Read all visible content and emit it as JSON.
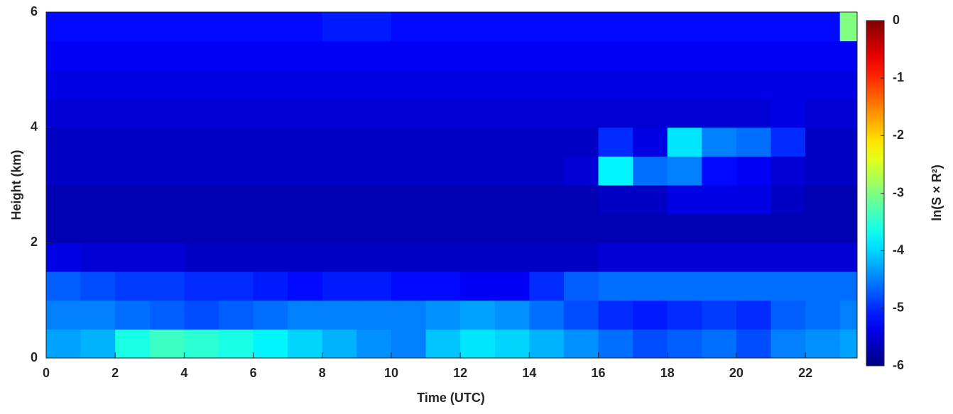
{
  "chart_data": {
    "type": "heatmap",
    "xlabel": "Time (UTC)",
    "ylabel": "Height (km)",
    "colorbar_label": "ln(S × R²)",
    "x_bins": [
      0,
      1,
      2,
      3,
      4,
      5,
      6,
      7,
      8,
      9,
      10,
      11,
      12,
      13,
      14,
      15,
      16,
      17,
      18,
      19,
      20,
      21,
      22,
      23,
      23.5
    ],
    "y_bins": [
      0,
      0.5,
      1,
      1.5,
      2,
      2.5,
      3,
      3.5,
      4,
      4.5,
      5,
      5.5,
      6
    ],
    "z": [
      [
        -4.3,
        -4.2,
        -3.6,
        -3.4,
        -3.5,
        -3.6,
        -3.8,
        -4,
        -4.2,
        -4.4,
        -4.5,
        -4.1,
        -3.9,
        -4,
        -4.2,
        -4.4,
        -4.6,
        -4.8,
        -4.7,
        -4.6,
        -4.8,
        -4.5,
        -4.4,
        -4.3
      ],
      [
        -4.5,
        -4.5,
        -4.6,
        -4.7,
        -4.8,
        -4.7,
        -4.6,
        -4.5,
        -4.5,
        -4.5,
        -4.5,
        -4.4,
        -4.3,
        -4.4,
        -4.6,
        -4.8,
        -5,
        -5.1,
        -5,
        -4.9,
        -5,
        -4.7,
        -4.6,
        -4.5
      ],
      [
        -4.7,
        -4.8,
        -4.9,
        -4.9,
        -5,
        -5,
        -5.1,
        -5.2,
        -5.1,
        -5.1,
        -5.2,
        -5.2,
        -5.3,
        -5.3,
        -5,
        -4.7,
        -4.6,
        -4.6,
        -4.6,
        -4.6,
        -4.6,
        -4.6,
        -4.6,
        -4.6
      ],
      [
        -5.4,
        -5.5,
        -5.5,
        -5.5,
        -5.6,
        -5.6,
        -5.6,
        -5.6,
        -5.6,
        -5.6,
        -5.6,
        -5.6,
        -5.6,
        -5.6,
        -5.6,
        -5.6,
        -5.5,
        -5.5,
        -5.5,
        -5.5,
        -5.5,
        -5.5,
        -5.5,
        -5.5
      ],
      [
        -5.7,
        -5.7,
        -5.7,
        -5.7,
        -5.7,
        -5.7,
        -5.7,
        -5.7,
        -5.7,
        -5.7,
        -5.7,
        -5.7,
        -5.7,
        -5.7,
        -5.7,
        -5.7,
        -5.7,
        -5.7,
        -5.7,
        -5.7,
        -5.7,
        -5.7,
        -5.7,
        -5.7
      ],
      [
        -5.7,
        -5.7,
        -5.7,
        -5.7,
        -5.7,
        -5.7,
        -5.7,
        -5.7,
        -5.7,
        -5.7,
        -5.7,
        -5.7,
        -5.7,
        -5.7,
        -5.7,
        -5.7,
        -5.6,
        -5.6,
        -5.4,
        -5.4,
        -5.4,
        -5.6,
        -5.7,
        -5.7
      ],
      [
        -5.6,
        -5.6,
        -5.6,
        -5.6,
        -5.6,
        -5.6,
        -5.6,
        -5.6,
        -5.6,
        -5.6,
        -5.6,
        -5.6,
        -5.6,
        -5.6,
        -5.6,
        -5.5,
        -3.8,
        -4.6,
        -4.5,
        -5.2,
        -5.3,
        -5.5,
        -5.6,
        -5.6
      ],
      [
        -5.6,
        -5.6,
        -5.6,
        -5.6,
        -5.6,
        -5.6,
        -5.6,
        -5.6,
        -5.6,
        -5.6,
        -5.6,
        -5.6,
        -5.6,
        -5.6,
        -5.6,
        -5.6,
        -5,
        -5.4,
        -3.9,
        -4.5,
        -4.6,
        -5,
        -5.6,
        -5.6
      ],
      [
        -5.5,
        -5.5,
        -5.5,
        -5.5,
        -5.5,
        -5.5,
        -5.5,
        -5.5,
        -5.5,
        -5.5,
        -5.5,
        -5.5,
        -5.5,
        -5.5,
        -5.5,
        -5.5,
        -5.5,
        -5.5,
        -5.5,
        -5.5,
        -5.5,
        -5.4,
        -5.5,
        -5.5
      ],
      [
        -5.4,
        -5.4,
        -5.4,
        -5.4,
        -5.4,
        -5.4,
        -5.4,
        -5.4,
        -5.4,
        -5.4,
        -5.4,
        -5.4,
        -5.4,
        -5.4,
        -5.4,
        -5.4,
        -5.4,
        -5.4,
        -5.4,
        -5.4,
        -5.4,
        -5.4,
        -5.4,
        -5.4
      ],
      [
        -5.3,
        -5.3,
        -5.3,
        -5.3,
        -5.3,
        -5.3,
        -5.3,
        -5.3,
        -5.3,
        -5.3,
        -5.3,
        -5.3,
        -5.3,
        -5.3,
        -5.3,
        -5.3,
        -5.3,
        -5.3,
        -5.3,
        -5.3,
        -5.3,
        -5.3,
        -5.3,
        -5.3
      ],
      [
        -5.2,
        -5.2,
        -5.2,
        -5.2,
        -5.2,
        -5.2,
        -5.2,
        -5.2,
        -5.1,
        -5.1,
        -5.2,
        -5.2,
        -5.2,
        -5.2,
        -5.2,
        -5.2,
        -5.2,
        -5.2,
        -5.2,
        -5.2,
        -5.2,
        -5.2,
        -5.2,
        -3
      ]
    ],
    "xlim": [
      0,
      23.5
    ],
    "ylim": [
      0,
      6
    ],
    "xticks": [
      0,
      2,
      4,
      6,
      8,
      10,
      12,
      14,
      16,
      18,
      20,
      22
    ],
    "yticks": [
      0,
      2,
      4,
      6
    ],
    "clim": [
      -6,
      0
    ],
    "cticks": [
      -6,
      -5,
      -4,
      -3,
      -2,
      -1,
      0
    ],
    "colormap": "jet"
  }
}
